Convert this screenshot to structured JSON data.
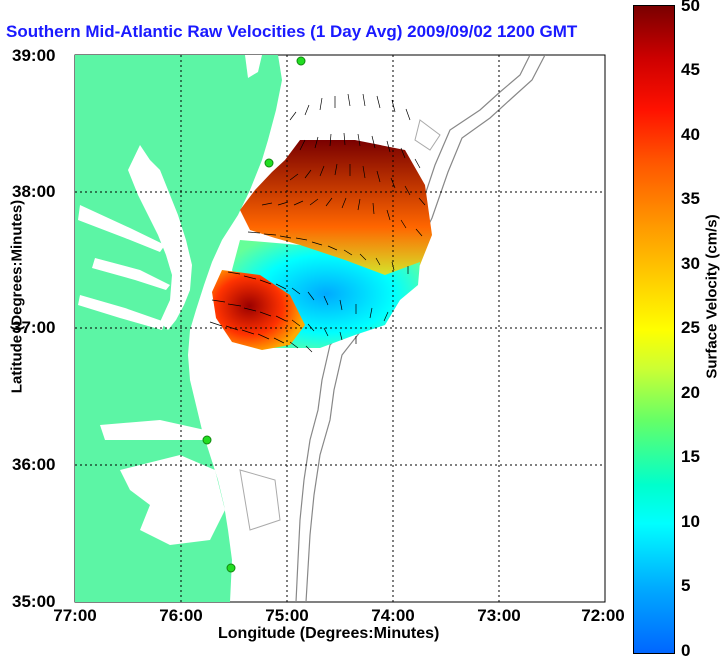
{
  "title": "Southern Mid-Atlantic Raw Velocities (1 Day Avg) 2009/09/02 1200 GMT",
  "axes": {
    "xlabel": "Longitude (Degrees:Minutes)",
    "ylabel": "Latitude (Degrees:Minutes)",
    "xticks": [
      "77:00",
      "76:00",
      "75:00",
      "74:00",
      "73:00",
      "72:00"
    ],
    "yticks": [
      "39:00",
      "38:00",
      "37:00",
      "36:00",
      "35:00"
    ],
    "xlim": [
      "77:00",
      "72:00"
    ],
    "ylim": [
      "35:00",
      "39:00"
    ]
  },
  "colorbar": {
    "label": "Surface Velocity (cm/s)",
    "ticks": [
      "50",
      "45",
      "40",
      "35",
      "30",
      "25",
      "20",
      "15",
      "10",
      "5",
      "0"
    ],
    "range": [
      0,
      50
    ],
    "colors": [
      "#0066ff",
      "#00ffff",
      "#66ff66",
      "#ffff00",
      "#ff9900",
      "#ff1100",
      "#7a0000"
    ]
  },
  "colors": {
    "land": "#5cf5a5",
    "ocean": "#ffffff",
    "bathymetry": "#888888",
    "stations": "#22dd22"
  }
}
